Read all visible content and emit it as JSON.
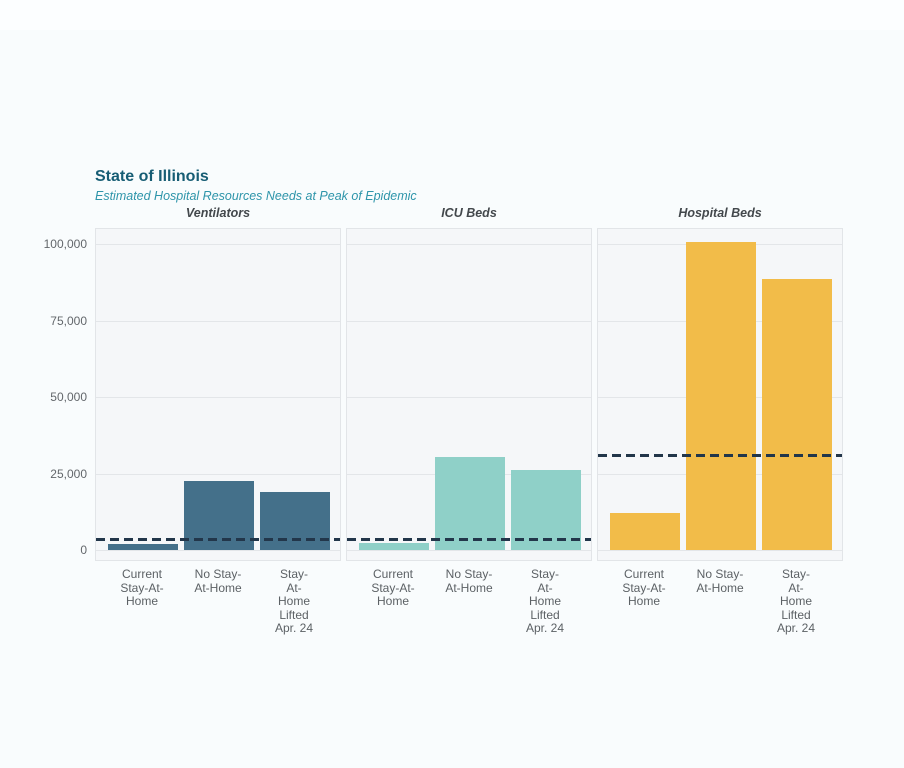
{
  "header": {
    "title": "State of Illinois",
    "subtitle": "Estimated Hospital Resources Needs at Peak of Epidemic"
  },
  "chart_data": {
    "type": "bar",
    "title": "State of Illinois",
    "subtitle": "Estimated Hospital Resources Needs at Peak of Epidemic",
    "categories": [
      "Current Stay-At-Home",
      "No Stay-At-Home",
      "Stay-At-Home Lifted Apr. 24"
    ],
    "category_label_lines": [
      [
        "Current",
        "Stay-At-",
        "Home"
      ],
      [
        "No Stay-",
        "At-Home"
      ],
      [
        "Stay-",
        "At-Home",
        "Lifted",
        "Apr. 24"
      ]
    ],
    "y_ticks": [
      {
        "label": "0",
        "value": 0
      },
      {
        "label": "25,000",
        "value": 25000
      },
      {
        "label": "50,000",
        "value": 50000
      },
      {
        "label": "75,000",
        "value": 75000
      },
      {
        "label": "100,000",
        "value": 100000
      }
    ],
    "ylim": [
      0,
      104500
    ],
    "grid": true,
    "legend_position": "none",
    "capacity_line_color": "#22364a",
    "capacity_line_style": "dashed",
    "panels": [
      {
        "title": "Ventilators",
        "bar_color": "#44708a",
        "values": [
          2000,
          22500,
          19000
        ],
        "capacity_line": 3600
      },
      {
        "title": "ICU Beds",
        "bar_color": "#8fd0c8",
        "values": [
          2200,
          30500,
          26000
        ],
        "capacity_line": 3600
      },
      {
        "title": "Hospital Beds",
        "bar_color": "#f2bc49",
        "values": [
          12000,
          100500,
          88500
        ],
        "capacity_line": 31000
      }
    ],
    "colors": {
      "page_background": "#f9fcfd",
      "panel_background": "#f5f7f9",
      "panel_border": "#e2e5e8",
      "gridline": "#e3e6e9",
      "title_text": "#175d74",
      "subtitle_text": "#2e95aa",
      "axis_text": "#63676b"
    }
  }
}
